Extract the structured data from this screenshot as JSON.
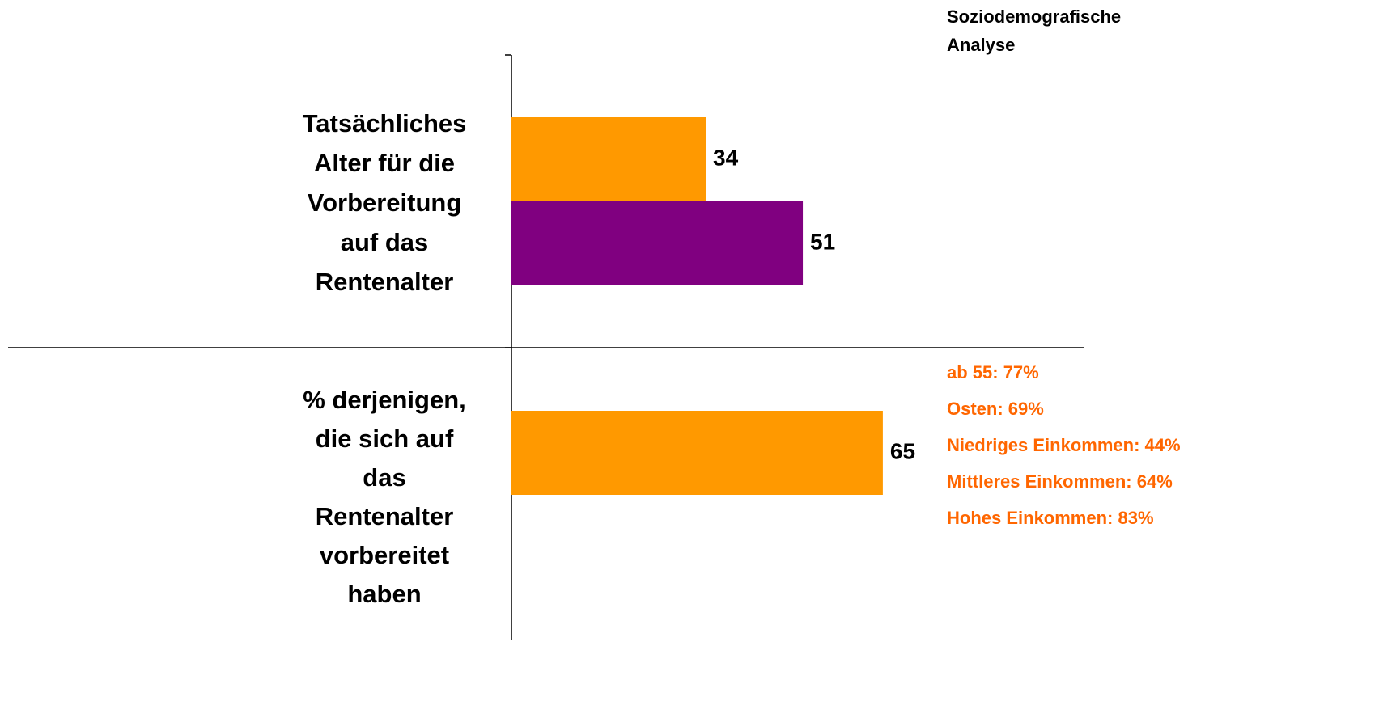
{
  "chart_data": {
    "type": "bar",
    "orientation": "horizontal",
    "header": [
      "Soziodemografische",
      "Analyse"
    ],
    "categories": [
      [
        "Tatsächliches",
        "Alter für die",
        "Vorbereitung",
        "auf das",
        "Rentenalter"
      ],
      [
        "% derjenigen,",
        "die sich auf",
        "das",
        "Rentenalter",
        "vorbereitet",
        "haben"
      ]
    ],
    "series": [
      {
        "color": "#ff9900",
        "values": [
          34,
          65
        ]
      },
      {
        "color": "#800080",
        "values": [
          51,
          null
        ]
      }
    ],
    "xlim": [
      0,
      100
    ],
    "annotations": [
      "ab 55: 77%",
      "Osten: 69%",
      "Niedriges Einkommen: 44%",
      "Mittleres Einkommen: 64%",
      "Hohes Einkommen: 83%"
    ]
  }
}
